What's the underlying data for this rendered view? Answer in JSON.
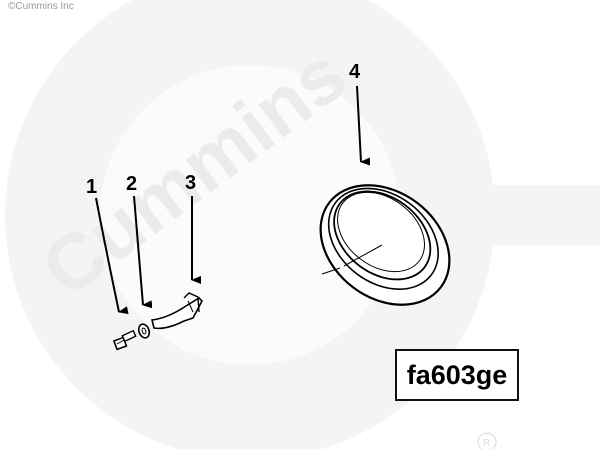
{
  "copyright": "©Cummins Inc",
  "watermark": {
    "text": "Cummins",
    "color": "#f2f2f2"
  },
  "figure_id": "fa603ge",
  "callouts": [
    {
      "id": "1",
      "part": "capscrew"
    },
    {
      "id": "2",
      "part": "washer"
    },
    {
      "id": "3",
      "part": "bracket"
    },
    {
      "id": "4",
      "part": "seal ring"
    }
  ],
  "colors": {
    "line": "#000000",
    "background": "#ffffff",
    "watermark": "#f2f2f2"
  }
}
